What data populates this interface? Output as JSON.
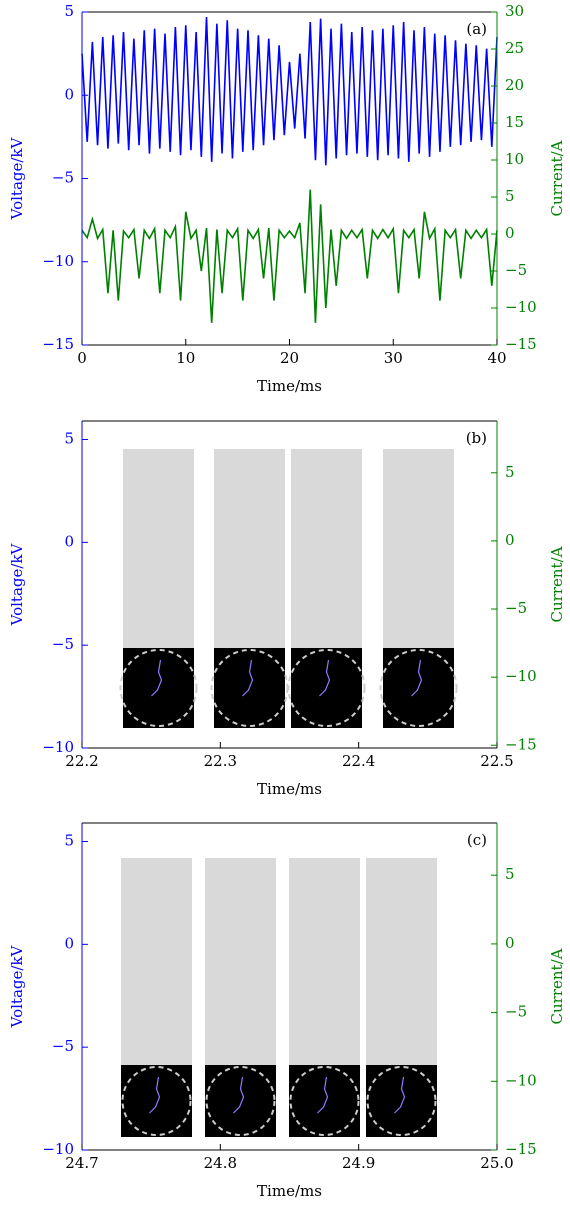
{
  "chart_data": [
    {
      "type": "line",
      "annotation": "(a)",
      "xlabel": "Time/ms",
      "ylabel": "Voltage/kV",
      "y2label": "Current/A",
      "xlim": [
        0,
        40
      ],
      "xticks": [
        0,
        10,
        20,
        30,
        40
      ],
      "ylim": [
        -15,
        5
      ],
      "yticks": [
        {
          "value": -15,
          "label": "−15"
        },
        {
          "value": -10,
          "label": "−10"
        },
        {
          "value": -5,
          "label": "−5"
        },
        0,
        5
      ],
      "y2lim": [
        -15,
        30
      ],
      "y2ticks": [
        {
          "value": -15,
          "label": "−15"
        },
        {
          "value": -10,
          "label": "−10"
        },
        {
          "value": -5,
          "label": "−5"
        },
        0,
        5,
        10,
        15,
        20,
        25,
        30
      ],
      "ycolor": "#0000ff",
      "y2color": "#008000",
      "x": [
        0,
        0.5,
        1,
        1.5,
        2,
        2.5,
        3,
        3.5,
        4,
        4.5,
        5,
        5.5,
        6,
        6.5,
        7,
        7.5,
        8,
        8.5,
        9,
        9.5,
        10,
        10.5,
        11,
        11.5,
        12,
        12.5,
        13,
        13.5,
        14,
        14.5,
        15,
        15.5,
        16,
        16.5,
        17,
        17.5,
        18,
        18.5,
        19,
        19.5,
        20,
        20.5,
        21,
        21.5,
        22,
        22.5,
        23,
        23.5,
        24,
        24.5,
        25,
        25.5,
        26,
        26.5,
        27,
        27.5,
        28,
        28.5,
        29,
        29.5,
        30,
        30.5,
        31,
        31.5,
        32,
        32.5,
        33,
        33.5,
        34,
        34.5,
        35,
        35.5,
        36,
        36.5,
        37,
        37.5,
        38,
        38.5,
        39,
        39.5,
        40
      ],
      "series": [
        {
          "color": "#0000ff",
          "axis": "y",
          "values": [
            2.5,
            -2.8,
            3.2,
            -3.0,
            3.5,
            -3.2,
            3.6,
            -2.9,
            3.8,
            -3.3,
            3.4,
            -3.0,
            3.9,
            -3.5,
            4.0,
            -3.2,
            3.7,
            -3.4,
            4.1,
            -3.6,
            4.2,
            -3.3,
            3.8,
            -3.7,
            4.7,
            -4.0,
            4.3,
            -3.5,
            4.5,
            -3.8,
            4.0,
            -3.4,
            3.9,
            -3.3,
            3.6,
            -3.0,
            3.4,
            -2.7,
            3.0,
            -2.4,
            2.0,
            -2.0,
            2.5,
            -2.6,
            4.4,
            -3.9,
            4.6,
            -4.2,
            4.0,
            -3.8,
            4.3,
            -3.6,
            3.8,
            -3.5,
            4.1,
            -3.7,
            3.9,
            -3.9,
            4.0,
            -3.6,
            4.2,
            -3.8,
            4.4,
            -4.0,
            3.9,
            -3.5,
            4.1,
            -3.7,
            3.7,
            -3.4,
            3.6,
            -3.1,
            3.3,
            -3.0,
            3.1,
            -2.8,
            3.0,
            -2.7,
            2.8,
            -3.1,
            3.5
          ]
        },
        {
          "color": "#008000",
          "axis": "y2",
          "values": [
            0.5,
            -0.5,
            2,
            -0.6,
            0.6,
            -8,
            0.5,
            -9,
            0.4,
            -0.5,
            0.6,
            -6,
            0.5,
            -0.6,
            0.7,
            -8,
            0.5,
            -0.5,
            1.0,
            -9,
            3,
            -0.6,
            0.5,
            -5,
            0.8,
            -12,
            0.6,
            -8,
            0.5,
            -0.5,
            0.7,
            -9,
            0.5,
            -0.6,
            0.6,
            -6,
            0.8,
            -9,
            0.5,
            -0.5,
            0.4,
            -0.5,
            1.5,
            -8,
            6,
            -12,
            4,
            -10,
            0.6,
            -7,
            0.5,
            -0.6,
            0.5,
            -0.5,
            0.6,
            -6,
            0.5,
            -0.6,
            0.6,
            -0.5,
            0.7,
            -8,
            0.5,
            -0.5,
            0.6,
            -6,
            3,
            -0.6,
            0.7,
            -9,
            0.5,
            -0.5,
            0.6,
            -6,
            0.5,
            -0.6,
            0.5,
            -0.5,
            0.6,
            -7,
            0.5
          ]
        }
      ]
    },
    {
      "type": "line",
      "annotation": "(b)",
      "xlabel": "Time/ms",
      "ylabel": "Voltage/kV",
      "y2label": "Current/A",
      "xlim": [
        22.2,
        22.5
      ],
      "xticks": [
        22.2,
        22.3,
        22.4,
        22.5
      ],
      "ylim": [
        -10,
        5.9
      ],
      "yticks": [
        {
          "value": -10,
          "label": "−10"
        },
        {
          "value": -5,
          "label": "−5"
        },
        0,
        5
      ],
      "y2lim": [
        -15.2,
        8.8
      ],
      "y2ticks": [
        {
          "value": -15,
          "label": "−15"
        },
        {
          "value": -10,
          "label": "−10"
        },
        {
          "value": -5,
          "label": "−5"
        },
        0,
        5
      ],
      "ycolor": "#0000ff",
      "y2color": "#008000"
    },
    {
      "type": "line",
      "annotation": "(c)",
      "xlabel": "Time/ms",
      "ylabel": "Voltage/kV",
      "y2label": "Current/A",
      "xlim": [
        24.7,
        25
      ],
      "xticks": [
        24.7,
        24.8,
        24.9,
        {
          "value": 25,
          "label": "25.0"
        }
      ],
      "ylim": [
        -10,
        5.9
      ],
      "yticks": [
        {
          "value": -10,
          "label": "−10"
        },
        {
          "value": -5,
          "label": "−5"
        },
        0,
        5
      ],
      "y2lim": [
        -15,
        8.8
      ],
      "y2ticks": [
        {
          "value": -15,
          "label": "−15"
        },
        {
          "value": -10,
          "label": "−10"
        },
        {
          "value": -5,
          "label": "−5"
        },
        0,
        5
      ],
      "ycolor": "#0000ff",
      "y2color": "#008000"
    }
  ]
}
